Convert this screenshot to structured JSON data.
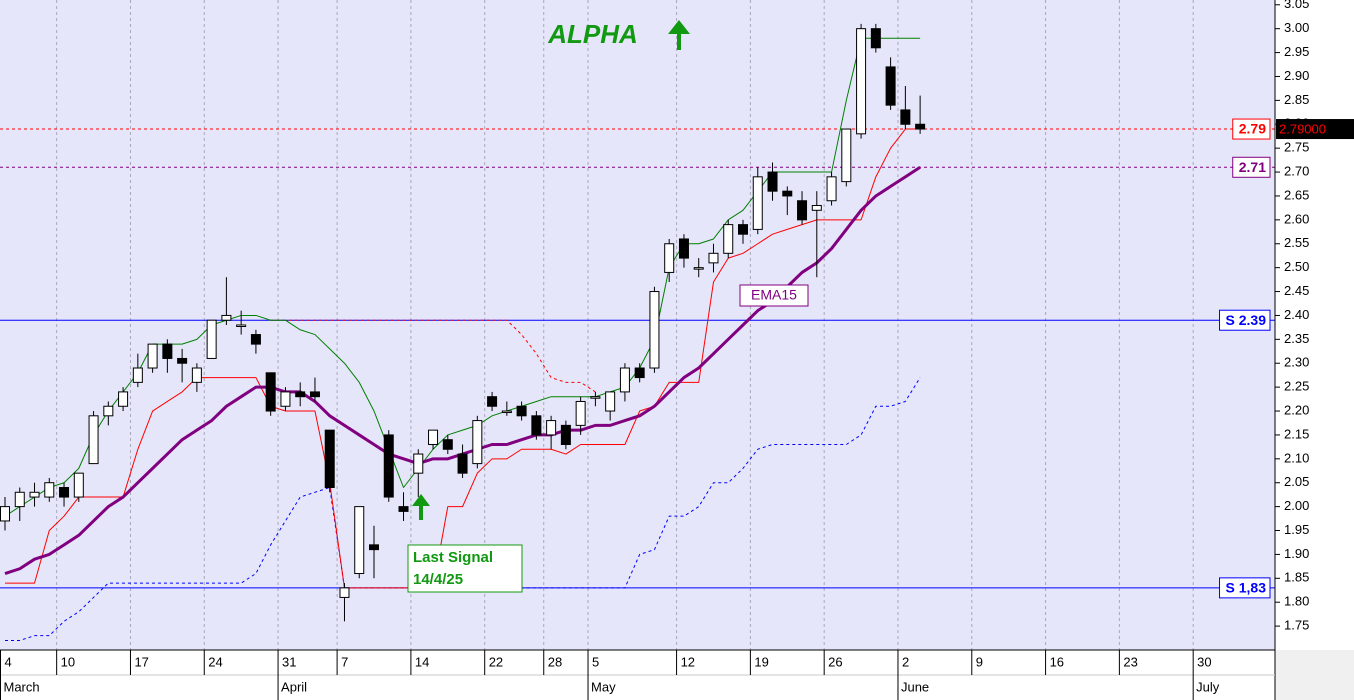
{
  "chart_data": {
    "type": "candlestick",
    "title": "ALPHA",
    "ema_label": "EMA15",
    "signal_label": [
      "Last Signal",
      "14/4/25"
    ],
    "ylim": [
      1.7,
      3.06
    ],
    "yticks": [
      1.75,
      {
        "value": 1.8,
        "label": "1.80"
      },
      1.85,
      {
        "value": 1.9,
        "label": "1.90"
      },
      1.95,
      {
        "value": 2.0,
        "label": "2.00"
      },
      2.05,
      {
        "value": 2.1,
        "label": "2.10"
      },
      2.15,
      {
        "value": 2.2,
        "label": "2.20"
      },
      2.25,
      {
        "value": 2.3,
        "label": "2.30"
      },
      2.35,
      {
        "value": 2.4,
        "label": "2.40"
      },
      2.45,
      {
        "value": 2.5,
        "label": "2.50"
      },
      2.55,
      {
        "value": 2.6,
        "label": "2.60"
      },
      2.65,
      {
        "value": 2.7,
        "label": "2.70"
      },
      2.75,
      {
        "value": 2.8,
        "label": "2.80"
      },
      2.85,
      {
        "value": 2.9,
        "label": "2.90"
      },
      2.95,
      {
        "value": 3.0,
        "label": "3.00"
      },
      3.05
    ],
    "grid": true,
    "categories": [
      "4",
      null,
      null,
      null,
      "10",
      null,
      null,
      null,
      null,
      "17",
      null,
      null,
      null,
      null,
      "24",
      null,
      null,
      null,
      null,
      "31",
      null,
      null,
      null,
      "7",
      null,
      null,
      null,
      null,
      "14",
      null,
      null,
      null,
      null,
      "22",
      null,
      null,
      null,
      "28",
      null,
      null,
      "5",
      null,
      null,
      null,
      null,
      null,
      "12",
      null,
      null,
      null,
      null,
      "19",
      null,
      null,
      null,
      null,
      "26",
      null,
      null,
      null,
      null,
      "2",
      null,
      null,
      null,
      null,
      "9",
      null,
      null,
      null,
      null,
      "16",
      null,
      null,
      null,
      null,
      "23",
      null,
      null,
      null,
      null,
      "30",
      null
    ],
    "months": [
      "March",
      null,
      null,
      null,
      null,
      null,
      null,
      null,
      null,
      null,
      null,
      null,
      null,
      null,
      null,
      null,
      null,
      null,
      null,
      "April",
      null,
      null,
      null,
      null,
      null,
      null,
      null,
      null,
      null,
      null,
      null,
      null,
      null,
      null,
      null,
      null,
      null,
      null,
      null,
      null,
      "May",
      null,
      null,
      null,
      null,
      null,
      null,
      null,
      null,
      null,
      null,
      null,
      null,
      null,
      null,
      null,
      null,
      null,
      null,
      null,
      null,
      "June",
      null,
      null,
      null,
      null,
      null,
      null,
      null,
      null,
      null,
      null,
      null,
      null,
      null,
      null,
      null,
      null,
      null,
      null,
      null,
      "July"
    ],
    "open": [
      1.97,
      2.0,
      2.02,
      2.02,
      2.04,
      2.02,
      2.09,
      2.19,
      2.21,
      2.26,
      2.29,
      2.34,
      2.31,
      2.26,
      2.31,
      2.39,
      2.38,
      2.36,
      2.28,
      2.21,
      2.24,
      2.24,
      2.16,
      1.81,
      1.86,
      1.92,
      2.15,
      2.0,
      2.07,
      2.13,
      2.14,
      2.11,
      2.09,
      2.23,
      2.2,
      2.21,
      2.19,
      2.15,
      2.17,
      2.17,
      2.23,
      2.2,
      2.24,
      2.29,
      2.29,
      2.49,
      2.56,
      2.5,
      2.51,
      2.53,
      2.59,
      2.58,
      2.7,
      2.66,
      2.64,
      2.62,
      2.64,
      2.68,
      2.78,
      3.0,
      2.92,
      2.83,
      2.8,
      null,
      null,
      null,
      null,
      null,
      null,
      null,
      null,
      null,
      null,
      null,
      null,
      null,
      null,
      null,
      null,
      null,
      null,
      null,
      null
    ],
    "high": [
      2.02,
      2.04,
      2.05,
      2.06,
      2.05,
      2.07,
      2.2,
      2.22,
      2.25,
      2.32,
      2.34,
      2.35,
      2.33,
      2.3,
      2.39,
      2.48,
      2.41,
      2.37,
      2.28,
      2.25,
      2.26,
      2.27,
      2.16,
      1.84,
      2.0,
      1.96,
      2.16,
      2.03,
      2.12,
      2.16,
      2.15,
      2.13,
      2.19,
      2.24,
      2.22,
      2.22,
      2.2,
      2.19,
      2.18,
      2.23,
      2.24,
      2.24,
      2.3,
      2.3,
      2.46,
      2.56,
      2.57,
      2.52,
      2.55,
      2.6,
      2.6,
      2.71,
      2.72,
      2.67,
      2.66,
      2.66,
      2.7,
      2.79,
      3.01,
      3.01,
      2.94,
      2.88,
      2.86,
      null,
      null,
      null,
      null,
      null,
      null,
      null,
      null,
      null,
      null,
      null,
      null,
      null,
      null,
      null,
      null,
      null,
      null,
      null,
      null
    ],
    "low": [
      1.95,
      1.97,
      2.0,
      2.01,
      2.0,
      2.01,
      2.09,
      2.17,
      2.2,
      2.25,
      2.28,
      2.28,
      2.26,
      2.24,
      2.31,
      2.38,
      2.36,
      2.32,
      2.19,
      2.2,
      2.21,
      2.22,
      2.03,
      1.76,
      1.85,
      1.85,
      2.01,
      1.97,
      2.02,
      2.12,
      2.11,
      2.06,
      2.08,
      2.2,
      2.19,
      2.18,
      2.14,
      2.12,
      2.12,
      2.15,
      2.21,
      2.18,
      2.22,
      2.26,
      2.28,
      2.47,
      2.5,
      2.48,
      2.49,
      2.52,
      2.55,
      2.57,
      2.64,
      2.61,
      2.59,
      2.48,
      2.63,
      2.67,
      2.77,
      2.95,
      2.83,
      2.79,
      2.78,
      null,
      null,
      null,
      null,
      null,
      null,
      null,
      null,
      null,
      null,
      null,
      null,
      null,
      null,
      null,
      null,
      null,
      null,
      null,
      null
    ],
    "close": [
      2.0,
      2.03,
      2.03,
      2.05,
      2.02,
      2.07,
      2.19,
      2.21,
      2.24,
      2.29,
      2.34,
      2.31,
      2.3,
      2.29,
      2.39,
      2.4,
      2.38,
      2.34,
      2.2,
      2.24,
      2.23,
      2.23,
      2.04,
      1.83,
      2.0,
      1.91,
      2.02,
      1.99,
      2.11,
      2.16,
      2.12,
      2.07,
      2.18,
      2.21,
      2.2,
      2.19,
      2.15,
      2.18,
      2.13,
      2.22,
      2.23,
      2.24,
      2.29,
      2.27,
      2.45,
      2.55,
      2.52,
      2.5,
      2.53,
      2.59,
      2.57,
      2.69,
      2.66,
      2.65,
      2.6,
      2.63,
      2.69,
      2.79,
      3.0,
      2.96,
      2.84,
      2.8,
      2.79,
      null,
      null,
      null,
      null,
      null,
      null,
      null,
      null,
      null,
      null,
      null,
      null,
      null,
      null,
      null,
      null,
      null,
      null,
      null,
      null
    ],
    "up_color": "#ffffff",
    "down_color": "#000000",
    "lines": [
      {
        "color": "#ff0000",
        "style": "dashed",
        "width": 1,
        "values": [
          null,
          null,
          null,
          null,
          null,
          null,
          null,
          null,
          null,
          null,
          null,
          null,
          null,
          null,
          null,
          null,
          null,
          null,
          2.39,
          2.39,
          2.39,
          2.39,
          2.39,
          2.39,
          2.39,
          2.39,
          2.39,
          2.39,
          2.39,
          2.39,
          2.39,
          2.39,
          2.39,
          2.39,
          2.39,
          2.36,
          2.32,
          2.27,
          2.26,
          2.26,
          2.24,
          null,
          null,
          null,
          null,
          null,
          null,
          null,
          null,
          null,
          null,
          null,
          null,
          null,
          null,
          null,
          null,
          null,
          null,
          null,
          null,
          null,
          null,
          null,
          null,
          null,
          null,
          null,
          null,
          null,
          null,
          null,
          null,
          null,
          null,
          null,
          null,
          null,
          null,
          null,
          null,
          null,
          null
        ]
      },
      {
        "color": "#0000ff",
        "style": "dashed",
        "width": 1,
        "values": [
          1.72,
          1.72,
          1.73,
          1.73,
          1.76,
          1.78,
          1.81,
          1.84,
          1.84,
          1.84,
          1.84,
          1.84,
          1.84,
          1.84,
          1.84,
          1.84,
          1.84,
          1.86,
          1.92,
          1.97,
          2.02,
          2.03,
          2.04,
          1.83,
          1.83,
          1.83,
          1.83,
          1.83,
          1.83,
          1.83,
          1.83,
          1.83,
          1.83,
          1.83,
          1.83,
          1.83,
          1.83,
          1.83,
          1.83,
          1.83,
          1.83,
          1.83,
          1.83,
          1.9,
          1.91,
          1.98,
          1.98,
          2.0,
          2.05,
          2.05,
          2.08,
          2.12,
          2.13,
          2.13,
          2.13,
          2.13,
          2.13,
          2.13,
          2.15,
          2.21,
          2.21,
          2.22,
          2.27,
          null,
          null,
          null,
          null,
          null,
          null,
          null,
          null,
          null,
          null,
          null,
          null,
          null,
          null,
          null,
          null,
          null,
          null,
          null,
          null
        ]
      },
      {
        "color": "#008000",
        "style": "solid",
        "width": 1,
        "values": [
          1.98,
          2.0,
          2.02,
          2.04,
          2.05,
          2.08,
          2.15,
          2.2,
          2.24,
          2.28,
          2.34,
          2.34,
          2.34,
          2.35,
          2.38,
          2.39,
          2.4,
          2.4,
          2.39,
          2.39,
          2.37,
          2.36,
          2.33,
          2.3,
          2.26,
          2.2,
          2.12,
          2.04,
          2.08,
          2.12,
          2.15,
          2.16,
          2.17,
          2.19,
          2.2,
          2.21,
          2.22,
          2.23,
          2.23,
          2.23,
          2.23,
          2.24,
          2.25,
          2.29,
          2.35,
          2.5,
          2.55,
          2.55,
          2.56,
          2.6,
          2.62,
          2.66,
          2.7,
          2.7,
          2.7,
          2.7,
          2.7,
          2.85,
          2.98,
          2.98,
          2.98,
          2.98,
          2.98,
          null,
          null,
          null,
          null,
          null,
          null,
          null,
          null,
          null,
          null,
          null,
          null,
          null,
          null,
          null,
          null,
          null,
          null,
          null,
          null
        ]
      },
      {
        "color": "#ff0000",
        "style": "solid",
        "width": 1,
        "values": [
          1.84,
          1.84,
          1.84,
          1.95,
          1.98,
          2.02,
          2.02,
          2.02,
          2.02,
          2.12,
          2.2,
          2.22,
          2.24,
          2.27,
          2.27,
          2.27,
          2.27,
          2.27,
          2.21,
          2.2,
          2.2,
          2.2,
          2.05,
          1.83,
          1.83,
          1.83,
          1.83,
          1.83,
          1.83,
          1.83,
          2.0,
          2.0,
          2.07,
          2.1,
          2.1,
          2.12,
          2.12,
          2.12,
          2.11,
          2.13,
          2.13,
          2.13,
          2.13,
          2.2,
          2.21,
          2.26,
          2.26,
          2.26,
          2.47,
          2.52,
          2.53,
          2.55,
          2.57,
          2.58,
          2.59,
          2.6,
          2.6,
          2.6,
          2.6,
          2.69,
          2.75,
          2.79,
          2.79,
          null,
          null,
          null,
          null,
          null,
          null,
          null,
          null,
          null,
          null,
          null,
          null,
          null,
          null,
          null,
          null,
          null,
          null,
          null,
          null
        ]
      },
      {
        "color": "#800080",
        "style": "solid",
        "width": 3,
        "values": [
          1.86,
          1.87,
          1.89,
          1.9,
          1.92,
          1.94,
          1.97,
          2.0,
          2.02,
          2.05,
          2.08,
          2.11,
          2.14,
          2.16,
          2.18,
          2.21,
          2.23,
          2.25,
          2.25,
          2.24,
          2.24,
          2.22,
          2.19,
          2.17,
          2.15,
          2.13,
          2.11,
          2.1,
          2.09,
          2.1,
          2.1,
          2.11,
          2.12,
          2.13,
          2.13,
          2.14,
          2.15,
          2.15,
          2.16,
          2.16,
          2.17,
          2.17,
          2.18,
          2.19,
          2.21,
          2.24,
          2.27,
          2.29,
          2.32,
          2.35,
          2.38,
          2.41,
          2.43,
          2.46,
          2.49,
          2.51,
          2.54,
          2.58,
          2.62,
          2.65,
          2.67,
          2.69,
          2.71,
          null,
          null,
          null,
          null,
          null,
          null,
          null,
          null,
          null,
          null,
          null,
          null,
          null,
          null,
          null,
          null,
          null,
          null,
          null,
          null
        ]
      }
    ],
    "ref_lines": [
      {
        "value": 2.79,
        "label": "2.79",
        "color": "#ff0000",
        "style": "dashed"
      },
      {
        "value": 2.71,
        "label": "2.71",
        "color": "#800080",
        "style": "dashed"
      },
      {
        "value": 2.39,
        "label": "S 2.39",
        "color": "#0000ff",
        "style": "solid"
      },
      {
        "value": 1.83,
        "label": "S 1,83",
        "color": "#0000ff",
        "style": "solid"
      }
    ],
    "last_price": {
      "value": 2.79,
      "label": "2.79000",
      "color": "#ff0000"
    }
  }
}
